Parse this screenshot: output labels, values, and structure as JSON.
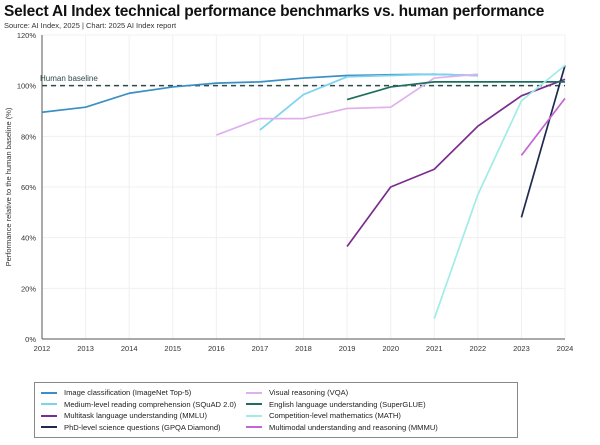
{
  "chart_data": {
    "type": "line",
    "title": "Select AI Index technical performance benchmarks vs. human performance",
    "subtitle": "Source: AI Index, 2025 | Chart: 2025 AI Index report",
    "xlabel": "",
    "ylabel": "Performance relative to the human baseline (%)",
    "xlim": [
      2012,
      2024
    ],
    "ylim": [
      0,
      120
    ],
    "x_ticks": [
      "2012",
      "2013",
      "2014",
      "2015",
      "2016",
      "2017",
      "2018",
      "2019",
      "2020",
      "2021",
      "2022",
      "2023",
      "2024"
    ],
    "y_ticks": [
      "0%",
      "20%",
      "40%",
      "60%",
      "80%",
      "100%",
      "120%"
    ],
    "grid": true,
    "legend_position": "bottom",
    "baseline": {
      "label": "Human baseline",
      "value": 100,
      "color": "#2e4a4a"
    },
    "series": [
      {
        "name": "Image classification (ImageNet Top-5)",
        "color": "#3a8fc4",
        "x": [
          2012,
          2013,
          2014,
          2015,
          2016,
          2017,
          2018,
          2019,
          2020,
          2021,
          2022
        ],
        "y": [
          89.5,
          91.5,
          97,
          99.5,
          101,
          101.5,
          103,
          104,
          104.3,
          104.5,
          104
        ]
      },
      {
        "name": "Medium-level reading comprehension (SQuAD 2.0)",
        "color": "#7dd3ef",
        "x": [
          2017,
          2018,
          2019,
          2020,
          2021,
          2022
        ],
        "y": [
          82.5,
          96.5,
          103.5,
          104,
          104.5,
          104
        ]
      },
      {
        "name": "Multitask language understanding (MMLU)",
        "color": "#7b2d8e",
        "x": [
          2019,
          2020,
          2021,
          2022,
          2023,
          2024
        ],
        "y": [
          36.5,
          60,
          67,
          84,
          96,
          102.5
        ]
      },
      {
        "name": "PhD-level science questions (GPQA Diamond)",
        "color": "#1f2a52",
        "x": [
          2023,
          2024
        ],
        "y": [
          48,
          108
        ]
      },
      {
        "name": "Visual reasoning (VQA)",
        "color": "#e0b0ee",
        "x": [
          2016,
          2017,
          2018,
          2019,
          2020,
          2021,
          2022
        ],
        "y": [
          80.5,
          87,
          87,
          91,
          91.5,
          103,
          104.5
        ]
      },
      {
        "name": "English language understanding (SuperGLUE)",
        "color": "#1e6e5e",
        "x": [
          2019,
          2020,
          2021,
          2022,
          2023,
          2024
        ],
        "y": [
          94.5,
          99.5,
          101.5,
          101.5,
          101.5,
          101.5
        ]
      },
      {
        "name": "Competition-level mathematics (MATH)",
        "color": "#a0ece6",
        "x": [
          2021,
          2022,
          2023,
          2024
        ],
        "y": [
          8,
          57,
          94,
          108
        ]
      },
      {
        "name": "Multimodal understanding and reasoning (MMMU)",
        "color": "#c365d2",
        "x": [
          2023,
          2024
        ],
        "y": [
          72.5,
          95
        ]
      }
    ]
  }
}
